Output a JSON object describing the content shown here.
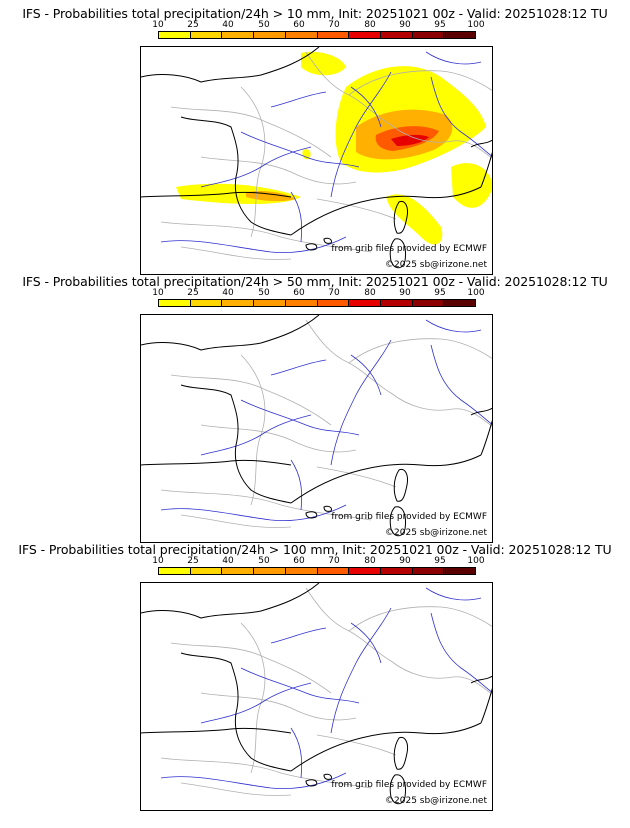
{
  "panels": [
    {
      "title": "IFS - Probabilities total precipitation/24h > 10 mm, Init: 20251021 00z - Valid: 20251028:12 TU"
    },
    {
      "title": "IFS - Probabilities total precipitation/24h > 50 mm, Init: 20251021 00z - Valid: 20251028:12 TU"
    },
    {
      "title": "IFS - Probabilities total precipitation/24h > 100 mm, Init: 20251021 00z - Valid: 20251028:12 TU"
    }
  ],
  "colorbar": {
    "ticks": [
      "10",
      "25",
      "40",
      "50",
      "60",
      "70",
      "80",
      "90",
      "95",
      "100"
    ],
    "colors": [
      "#ffff00",
      "#ffd700",
      "#ffb000",
      "#ff9a00",
      "#ff7f00",
      "#ff5a00",
      "#e60000",
      "#b40000",
      "#8b0000",
      "#5a0000"
    ]
  },
  "credits": {
    "source": "from grib files provided by ECMWF",
    "copyright": "©2025 sb@irizone.net"
  },
  "colors": {
    "coast": "#000000",
    "rivers": "#3030d0",
    "borders": "#b0b0b0"
  }
}
